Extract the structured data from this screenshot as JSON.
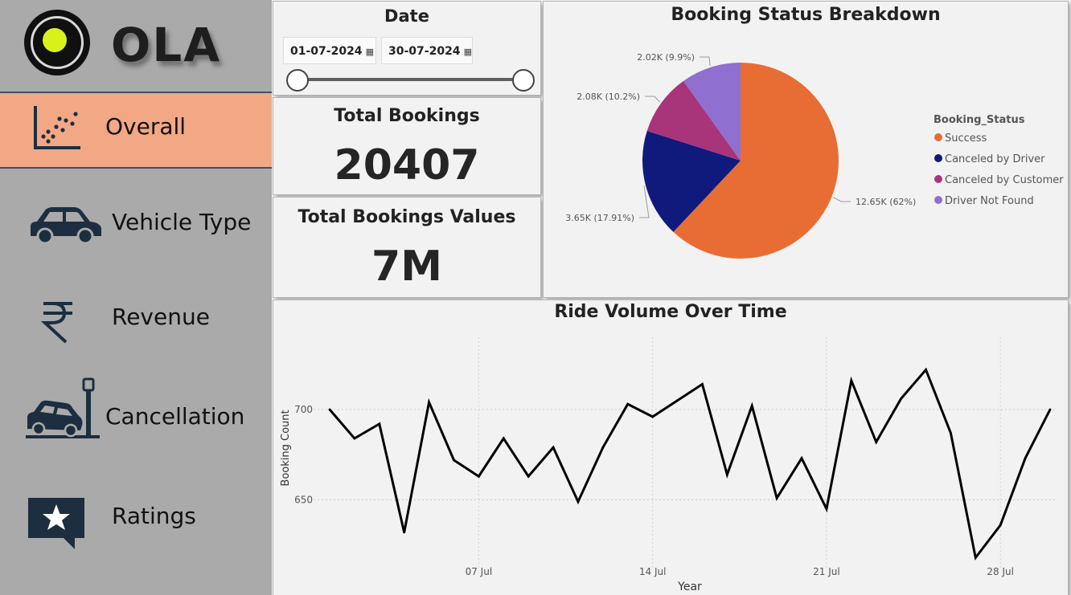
{
  "brand": {
    "name": "OLA"
  },
  "sidebar": {
    "items": [
      {
        "label": "Overall",
        "icon": "scatter-chart-icon",
        "active": true
      },
      {
        "label": "Vehicle Type",
        "icon": "car-icon",
        "active": false
      },
      {
        "label": "Revenue",
        "icon": "rupee-icon",
        "active": false
      },
      {
        "label": "Cancellation",
        "icon": "car-crash-icon",
        "active": false
      },
      {
        "label": "Ratings",
        "icon": "star-rating-icon",
        "active": false
      }
    ]
  },
  "date_filter": {
    "title": "Date",
    "start": "01-07-2024",
    "end": "30-07-2024",
    "range_fraction": [
      0,
      1
    ]
  },
  "kpis": [
    {
      "label": "Total Bookings",
      "value": "20407"
    },
    {
      "label": "Total Bookings Values",
      "value": "7M"
    }
  ],
  "colors": {
    "success": "#e86d35",
    "canceled_by_driver": "#101a7c",
    "canceled_by_customer": "#a8357a",
    "driver_not_found": "#8f70d0",
    "active_nav": "#f2a885",
    "sidebar_bg": "#aaaaaa"
  },
  "chart_data": [
    {
      "type": "pie",
      "title": "Booking Status Breakdown",
      "legend_title": "Booking_Status",
      "legend_position": "right",
      "slices": [
        {
          "name": "Success",
          "value": 12650,
          "label": "12.65K (62%)",
          "color": "#e86d35"
        },
        {
          "name": "Canceled by Driver",
          "value": 3650,
          "label": "3.65K (17.91%)",
          "color": "#101a7c"
        },
        {
          "name": "Canceled by Customer",
          "value": 2080,
          "label": "2.08K (10.2%)",
          "color": "#a8357a"
        },
        {
          "name": "Driver Not Found",
          "value": 2020,
          "label": "2.02K (9.9%)",
          "color": "#8f70d0"
        }
      ]
    },
    {
      "type": "line",
      "title": "Ride Volume Over Time",
      "xlabel": "Year",
      "ylabel": "Booking Count",
      "x": [
        "2024-07-01",
        "2024-07-02",
        "2024-07-03",
        "2024-07-04",
        "2024-07-05",
        "2024-07-06",
        "2024-07-07",
        "2024-07-08",
        "2024-07-09",
        "2024-07-10",
        "2024-07-11",
        "2024-07-12",
        "2024-07-13",
        "2024-07-14",
        "2024-07-15",
        "2024-07-16",
        "2024-07-17",
        "2024-07-18",
        "2024-07-19",
        "2024-07-20",
        "2024-07-21",
        "2024-07-22",
        "2024-07-23",
        "2024-07-24",
        "2024-07-25",
        "2024-07-26",
        "2024-07-27",
        "2024-07-28",
        "2024-07-29",
        "2024-07-30"
      ],
      "values": [
        700,
        684,
        692,
        632,
        704,
        672,
        663,
        684,
        663,
        679,
        649,
        679,
        703,
        696,
        705,
        714,
        664,
        702,
        651,
        673,
        645,
        716,
        682,
        706,
        722,
        687,
        618,
        636,
        673,
        700
      ],
      "x_ticks": [
        "07 Jul",
        "14 Jul",
        "21 Jul",
        "28 Jul"
      ],
      "y_ticks": [
        650,
        700
      ],
      "ylim": [
        612,
        740
      ],
      "grid": true
    }
  ]
}
